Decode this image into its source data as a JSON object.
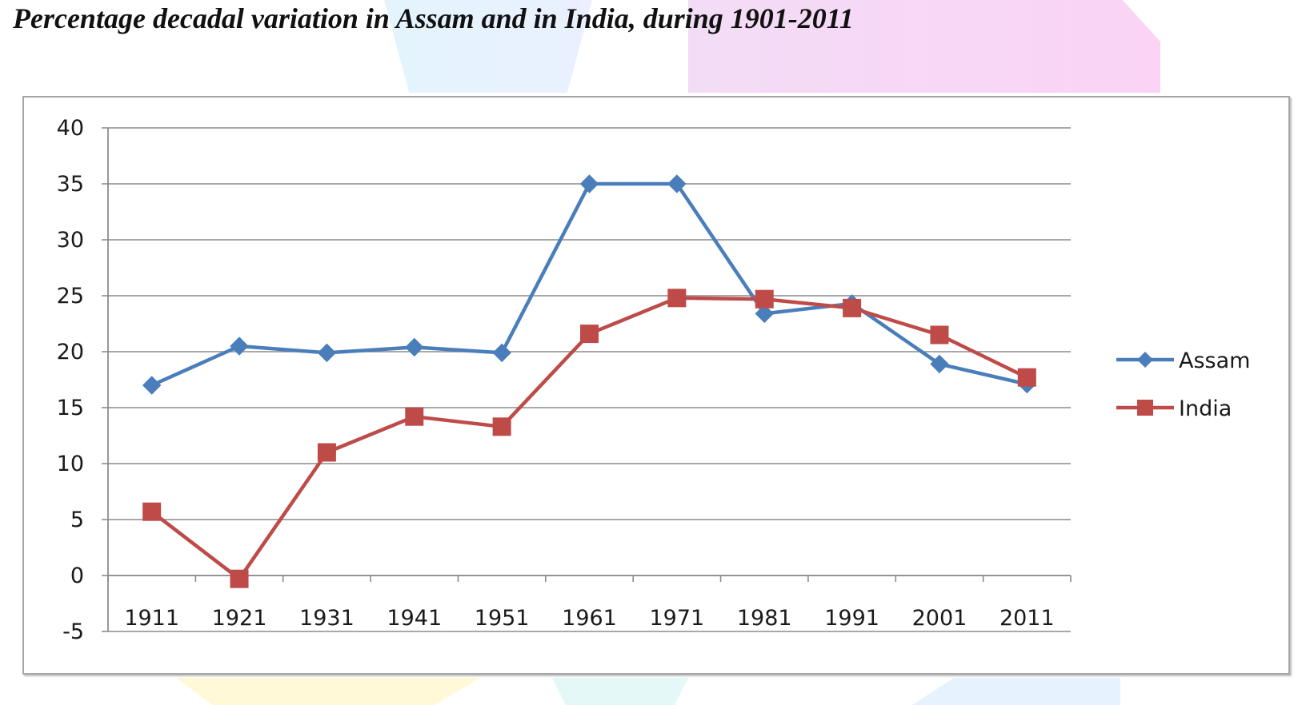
{
  "chart_data": {
    "type": "line",
    "title": "Percentage decadal variation in Assam and in India, during 1901-2011",
    "xlabel": "",
    "ylabel": "",
    "categories": [
      "1911",
      "1921",
      "1931",
      "1941",
      "1951",
      "1961",
      "1971",
      "1981",
      "1991",
      "2001",
      "2011"
    ],
    "series": [
      {
        "name": "Assam",
        "color": "#4a7ebb",
        "marker": "diamond",
        "values": [
          17.0,
          20.5,
          19.9,
          20.4,
          19.9,
          35.0,
          35.0,
          23.4,
          24.3,
          18.9,
          17.1
        ]
      },
      {
        "name": "India",
        "color": "#be4b48",
        "marker": "square",
        "values": [
          5.7,
          -0.3,
          11.0,
          14.2,
          13.3,
          21.6,
          24.8,
          24.7,
          23.9,
          21.5,
          17.7
        ]
      }
    ],
    "ylim": [
      -5,
      40
    ],
    "yticks": [
      -5,
      0,
      5,
      10,
      15,
      20,
      25,
      30,
      35,
      40
    ],
    "grid": true,
    "legend": "right"
  }
}
